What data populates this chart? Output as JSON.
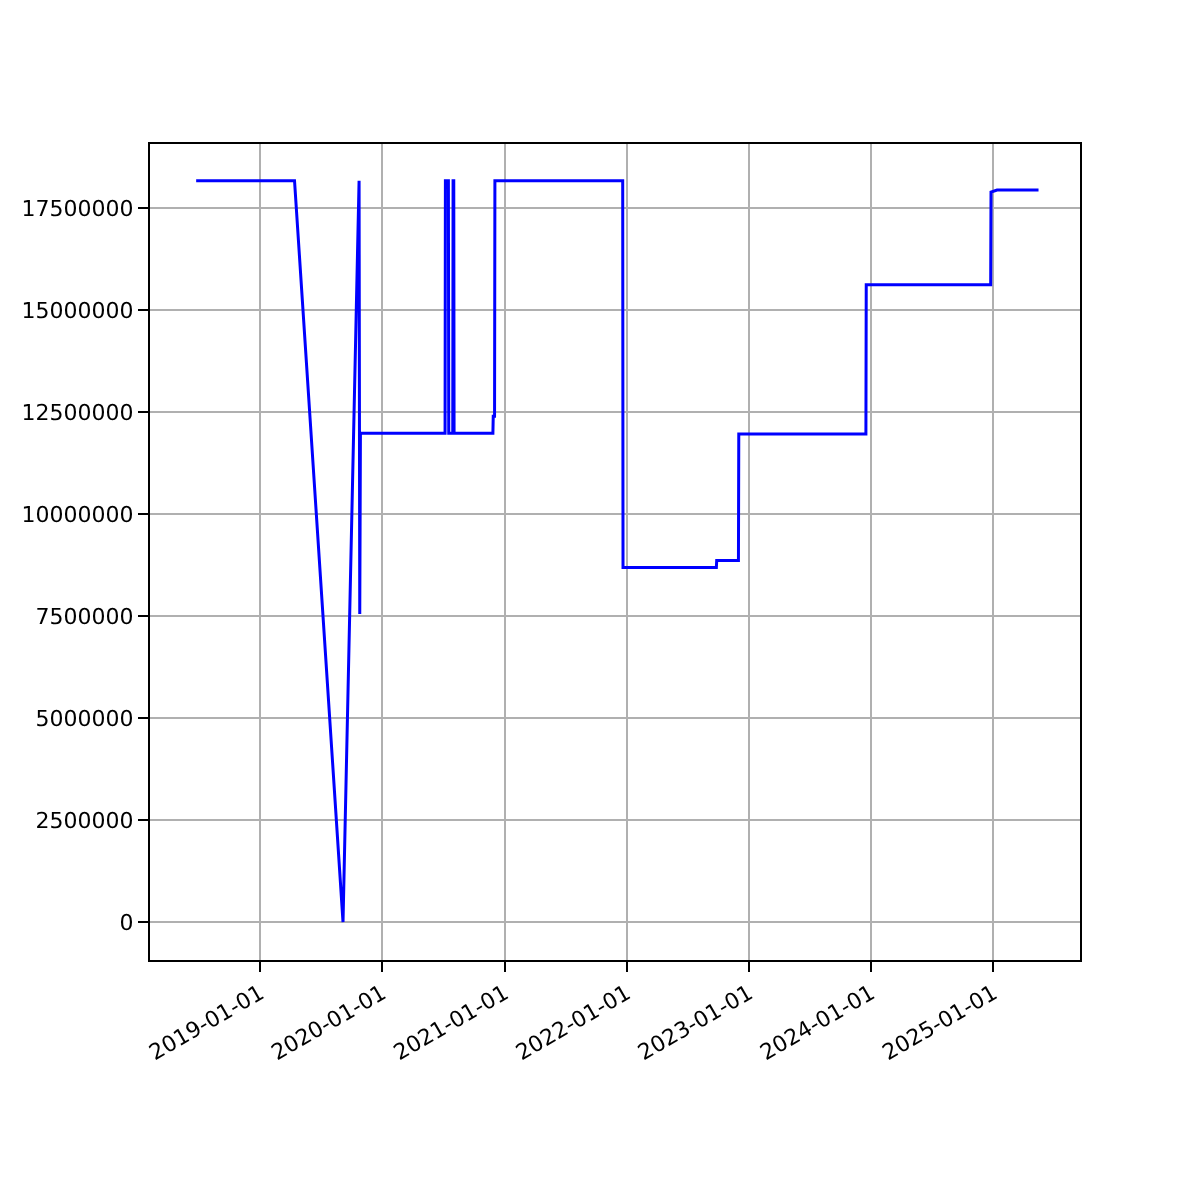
{
  "chart_data": {
    "type": "line",
    "x": [
      "2018-06-24",
      "2019-04-14",
      "2019-09-06",
      "2019-10-24",
      "2019-10-26",
      "2019-10-27",
      "2019-10-28",
      "2019-10-29",
      "2020-07-07",
      "2020-07-08",
      "2020-07-17",
      "2020-07-18",
      "2020-07-30",
      "2020-07-31",
      "2020-08-02",
      "2020-08-03",
      "2020-11-27",
      "2020-11-28",
      "2020-12-02",
      "2020-12-03",
      "2021-12-20",
      "2021-12-21",
      "2022-09-26",
      "2022-09-27",
      "2022-12-01",
      "2022-12-02",
      "2023-12-17",
      "2023-12-18",
      "2024-12-24",
      "2024-12-25",
      "2025-01-12",
      "2025-05-16"
    ],
    "series": [
      {
        "color": "#0000ff",
        "values": [
          18170000,
          18170000,
          0,
          18170000,
          7550000,
          9670000,
          11980000,
          11980000,
          11980000,
          18170000,
          18170000,
          11980000,
          11980000,
          18170000,
          18170000,
          11980000,
          11980000,
          12400000,
          12400000,
          18170000,
          18170000,
          8690000,
          8690000,
          8860000,
          8860000,
          11960000,
          11960000,
          15620000,
          15620000,
          17890000,
          17940000,
          17940000
        ]
      }
    ],
    "xlim": [
      "2018-02-06",
      "2025-09-17"
    ],
    "xticks": [
      "2019-01-01",
      "2020-01-01",
      "2021-01-01",
      "2022-01-01",
      "2023-01-01",
      "2024-01-01",
      "2025-01-01"
    ],
    "ylim": [
      -930000,
      19070000
    ],
    "yticks": [
      0,
      2500000,
      5000000,
      7500000,
      10000000,
      12500000,
      15000000,
      17500000
    ],
    "grid": true,
    "marker": "none",
    "line_style": "solid"
  }
}
